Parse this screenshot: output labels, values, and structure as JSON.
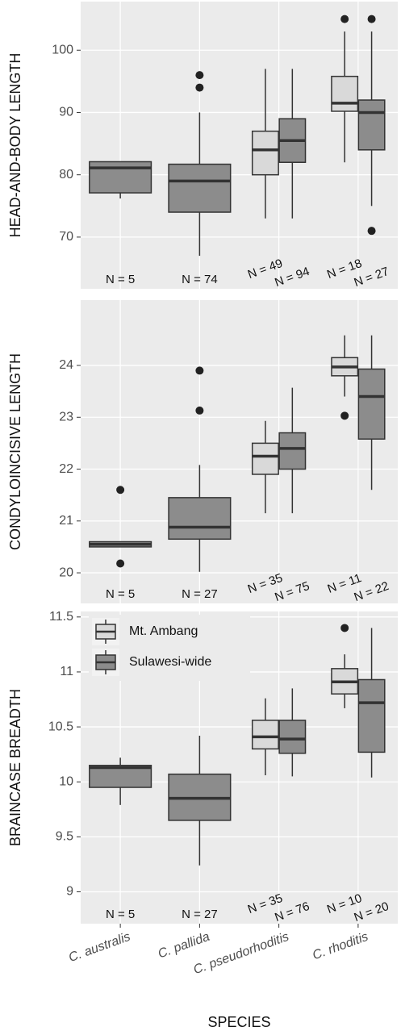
{
  "chart_data": [
    {
      "type": "box",
      "y_label": "HEAD-AND-BODY LENGTH",
      "ylim": [
        61.7,
        107.8
      ],
      "yticks": [
        70,
        80,
        90,
        100
      ],
      "grid": true,
      "series": [
        {
          "color": "#d9d9d9",
          "boxes": [
            null,
            null,
            {
              "min": 73,
              "q1": 80,
              "median": 84,
              "q3": 87,
              "max": 97
            },
            {
              "min": 82,
              "q1": 90.2,
              "median": 91.5,
              "q3": 95.8,
              "max": 103,
              "outliers": [
                105
              ]
            }
          ],
          "n_labels": [
            null,
            null,
            "N = 49",
            "N = 18"
          ]
        },
        {
          "color": "#8c8c8c",
          "boxes": [
            {
              "min": 76.2,
              "q1": 77.1,
              "median": 81.1,
              "q3": 82.1,
              "max": 82.1
            },
            {
              "min": 67,
              "q1": 74,
              "median": 79,
              "q3": 81.7,
              "max": 90,
              "outliers": [
                94,
                96
              ]
            },
            {
              "min": 73,
              "q1": 82,
              "median": 85.5,
              "q3": 89,
              "max": 97
            },
            {
              "min": 75,
              "q1": 84,
              "median": 90,
              "q3": 92,
              "max": 103,
              "outliers": [
                105,
                71
              ]
            }
          ],
          "n_labels": [
            "N = 5",
            "N = 74",
            "N = 94",
            "N = 27"
          ]
        }
      ]
    },
    {
      "type": "box",
      "y_label": "CONDYLOINCISIVE LENGTH",
      "ylim": [
        19.41,
        25.26
      ],
      "yticks": [
        20,
        21,
        22,
        23,
        24
      ],
      "grid": true,
      "series": [
        {
          "color": "#d9d9d9",
          "boxes": [
            null,
            null,
            {
              "min": 21.15,
              "q1": 21.9,
              "median": 22.25,
              "q3": 22.5,
              "max": 22.93
            },
            {
              "min": 23.4,
              "q1": 23.8,
              "median": 23.97,
              "q3": 24.15,
              "max": 24.58,
              "outliers": [
                23.03
              ]
            }
          ],
          "n_labels": [
            null,
            null,
            "N = 35",
            "N = 11"
          ]
        },
        {
          "color": "#8c8c8c",
          "boxes": [
            {
              "min": 20.5,
              "q1": 20.5,
              "median": 20.55,
              "q3": 20.6,
              "max": 20.6,
              "outliers": [
                21.6,
                20.18
              ]
            },
            {
              "min": 20.02,
              "q1": 20.65,
              "median": 20.88,
              "q3": 21.45,
              "max": 22.08,
              "outliers": [
                23.9,
                23.13
              ]
            },
            {
              "min": 21.15,
              "q1": 22.0,
              "median": 22.4,
              "q3": 22.7,
              "max": 23.57
            },
            {
              "min": 21.6,
              "q1": 22.58,
              "median": 23.4,
              "q3": 23.93,
              "max": 24.58
            }
          ],
          "n_labels": [
            "N = 5",
            "N = 27",
            "N = 75",
            "N = 22"
          ]
        }
      ]
    },
    {
      "type": "box",
      "y_label": "BRAINCASE BREADTH",
      "x_label": "SPECIES",
      "categories": [
        "C. australis",
        "C. pallida",
        "C. pseudorhoditis",
        "C. rhoditis"
      ],
      "ylim": [
        8.71,
        11.55
      ],
      "yticks": [
        9,
        9.5,
        10,
        10.5,
        11,
        11.5
      ],
      "grid": true,
      "legend": "top-left",
      "series": [
        {
          "name": "Mt. Ambang",
          "color": "#d9d9d9",
          "boxes": [
            null,
            null,
            {
              "min": 10.06,
              "q1": 10.3,
              "median": 10.41,
              "q3": 10.56,
              "max": 10.76
            },
            {
              "min": 10.67,
              "q1": 10.8,
              "median": 10.91,
              "q3": 11.03,
              "max": 11.16,
              "outliers": [
                11.4
              ]
            }
          ],
          "n_labels": [
            null,
            null,
            "N = 35",
            "N = 10"
          ]
        },
        {
          "name": "Sulawesi-wide",
          "color": "#8c8c8c",
          "boxes": [
            {
              "min": 9.79,
              "q1": 9.95,
              "median": 10.13,
              "q3": 10.15,
              "max": 10.22
            },
            {
              "min": 9.24,
              "q1": 9.65,
              "median": 9.85,
              "q3": 10.07,
              "max": 10.42
            },
            {
              "min": 10.05,
              "q1": 10.26,
              "median": 10.39,
              "q3": 10.56,
              "max": 10.85
            },
            {
              "min": 10.04,
              "q1": 10.27,
              "median": 10.72,
              "q3": 10.93,
              "max": 11.4
            }
          ],
          "n_labels": [
            "N = 5",
            "N = 27",
            "N = 76",
            "N = 20"
          ]
        }
      ]
    }
  ]
}
